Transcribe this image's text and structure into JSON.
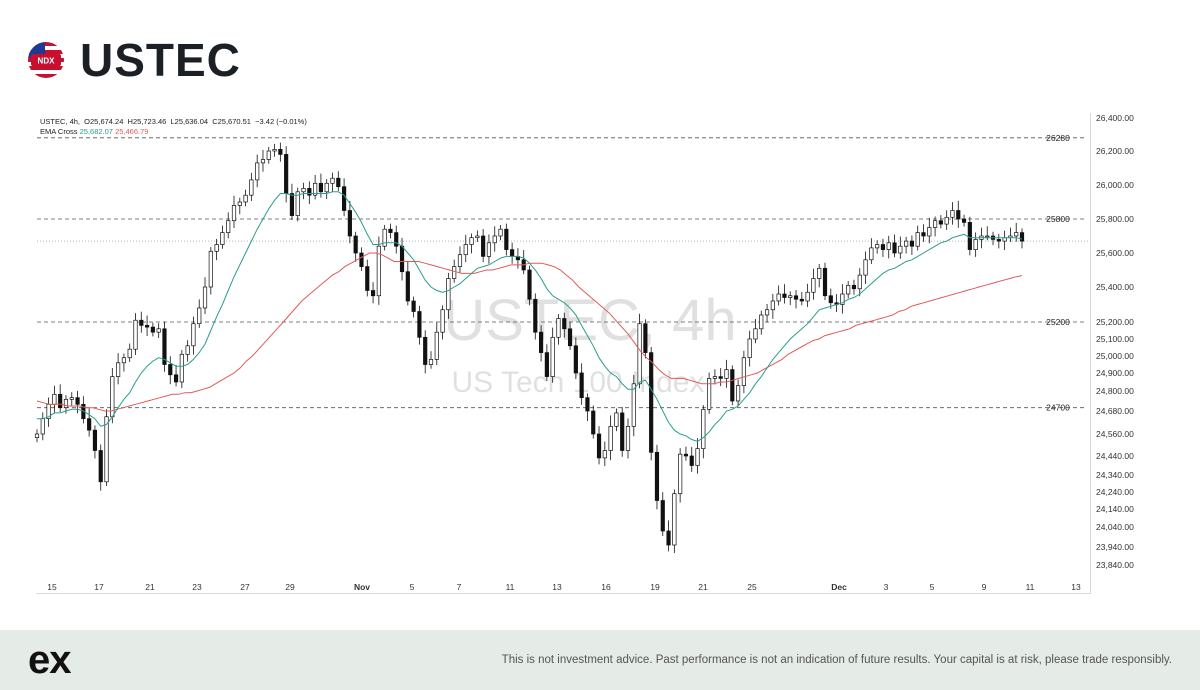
{
  "header": {
    "title": "USTEC",
    "flag_badge": "NDX",
    "flag_icon": "us-flag-icon"
  },
  "legend": {
    "symbol_line": "USTEC, 4h,  O25,674.24  H25,723.46  L25,636.04  C25,670.51  −3.42 (−0.01%)",
    "ema_label": "EMA Cross",
    "ema_fast_value": "25,682.07",
    "ema_slow_value": "25,466.79",
    "ema_fast_color": "#2a9d8f",
    "ema_slow_color": "#e05a5a"
  },
  "watermark": {
    "symbol": "USTEC, 4h",
    "name": "US Tech 100 Index"
  },
  "footer": {
    "brand": "ex",
    "disclaimer": "This is not investment advice. Past performance is not an indication of future results. Your capital is at risk, please trade responsibly."
  },
  "chart_data": {
    "type": "candlestick",
    "y_ticks": [
      "26,400.00",
      "26,200.00",
      "26,000.00",
      "25,800.00",
      "25,600.00",
      "25,400.00",
      "25,200.00",
      "25,100.00",
      "25,000.00",
      "24,900.00",
      "24,800.00",
      "24,680.00",
      "24,560.00",
      "24,440.00",
      "24,340.00",
      "24,240.00",
      "24,140.00",
      "24,040.00",
      "23,940.00",
      "23,840.00"
    ],
    "x_ticks": [
      "15",
      "17",
      "21",
      "23",
      "27",
      "29",
      "Nov",
      "5",
      "7",
      "11",
      "13",
      "16",
      "19",
      "21",
      "25",
      "Dec",
      "3",
      "5",
      "9",
      "11",
      "13"
    ],
    "levels": [
      {
        "label": "26280",
        "value": 26280
      },
      {
        "label": "25800",
        "value": 25800
      },
      {
        "label": "25200",
        "value": 25200
      },
      {
        "label": "24700",
        "value": 24700
      }
    ],
    "last_price": 25670.51,
    "closes": [
      24560,
      24640,
      24720,
      24780,
      24700,
      24750,
      24760,
      24720,
      24640,
      24580,
      24470,
      24300,
      24650,
      24880,
      24960,
      24990,
      25040,
      25210,
      25180,
      25170,
      25140,
      25160,
      24950,
      24890,
      24850,
      25010,
      25060,
      25190,
      25280,
      25400,
      25610,
      25650,
      25720,
      25790,
      25880,
      25900,
      25940,
      26030,
      26130,
      26150,
      26200,
      26210,
      26180,
      25950,
      25820,
      25960,
      25980,
      25940,
      26010,
      25960,
      26010,
      26040,
      25990,
      25850,
      25700,
      25600,
      25520,
      25380,
      25350,
      25640,
      25740,
      25720,
      25640,
      25490,
      25320,
      25260,
      25110,
      24950,
      24980,
      25140,
      25270,
      25450,
      25520,
      25590,
      25650,
      25690,
      25700,
      25580,
      25660,
      25700,
      25740,
      25620,
      25580,
      25560,
      25500,
      25330,
      25140,
      25020,
      24880,
      25110,
      25220,
      25160,
      25060,
      24900,
      24760,
      24680,
      24560,
      24430,
      24470,
      24600,
      24670,
      24470,
      24600,
      24840,
      25190,
      25020,
      24460,
      24190,
      24020,
      23950,
      24230,
      24450,
      24440,
      24390,
      24480,
      24690,
      24870,
      24880,
      24870,
      24920,
      24740,
      24830,
      24990,
      25100,
      25160,
      25240,
      25270,
      25320,
      25360,
      25340,
      25350,
      25330,
      25320,
      25370,
      25450,
      25510,
      25350,
      25310,
      25300,
      25360,
      25410,
      25390,
      25470,
      25560,
      25630,
      25650,
      25620,
      25660,
      25600,
      25640,
      25670,
      25640,
      25720,
      25700,
      25750,
      25790,
      25770,
      25810,
      25850,
      25800,
      25780,
      25620,
      25680,
      25700,
      25700,
      25680,
      25670,
      25690,
      25700,
      25720,
      25670
    ],
    "ema_fast": [
      24640,
      24640,
      24650,
      24670,
      24670,
      24680,
      24690,
      24690,
      24680,
      24660,
      24640,
      24600,
      24610,
      24650,
      24700,
      24750,
      24790,
      24850,
      24900,
      24940,
      24970,
      24990,
      24980,
      24960,
      24940,
      24940,
      24950,
      24980,
      25020,
      25070,
      25150,
      25230,
      25300,
      25380,
      25460,
      25530,
      25600,
      25670,
      25740,
      25800,
      25860,
      25910,
      25950,
      25950,
      25940,
      25940,
      25950,
      25950,
      25950,
      25950,
      25950,
      25960,
      25960,
      25940,
      25890,
      25840,
      25780,
      25710,
      25650,
      25650,
      25660,
      25660,
      25660,
      25640,
      25600,
      25560,
      25500,
      25440,
      25400,
      25380,
      25370,
      25380,
      25400,
      25420,
      25450,
      25480,
      25510,
      25520,
      25530,
      25550,
      25570,
      25580,
      25580,
      25580,
      25570,
      25540,
      25500,
      25450,
      25390,
      25350,
      25330,
      25310,
      25280,
      25240,
      25180,
      25120,
      25060,
      24990,
      24940,
      24900,
      24880,
      24840,
      24810,
      24810,
      24850,
      24860,
      24810,
      24750,
      24680,
      24620,
      24580,
      24560,
      24550,
      24530,
      24520,
      24540,
      24570,
      24610,
      24640,
      24680,
      24690,
      24710,
      24750,
      24790,
      24840,
      24880,
      24930,
      24980,
      25020,
      25060,
      25100,
      25130,
      25160,
      25190,
      25230,
      25270,
      25280,
      25290,
      25300,
      25310,
      25330,
      25340,
      25360,
      25390,
      25420,
      25450,
      25480,
      25500,
      25510,
      25530,
      25550,
      25560,
      25580,
      25600,
      25620,
      25640,
      25660,
      25670,
      25690,
      25700,
      25710,
      25690,
      25690,
      25690,
      25690,
      25690,
      25690,
      25690,
      25690,
      25690,
      25682
    ],
    "ema_slow": [
      24740,
      24730,
      24720,
      24720,
      24720,
      24710,
      24710,
      24710,
      24700,
      24700,
      24690,
      24680,
      24680,
      24690,
      24700,
      24710,
      24720,
      24730,
      24740,
      24750,
      24760,
      24770,
      24780,
      24780,
      24790,
      24790,
      24800,
      24810,
      24820,
      24840,
      24860,
      24880,
      24900,
      24930,
      24970,
      25000,
      25040,
      25080,
      25120,
      25160,
      25200,
      25240,
      25280,
      25320,
      25350,
      25380,
      25410,
      25440,
      25470,
      25490,
      25520,
      25540,
      25560,
      25580,
      25600,
      25600,
      25590,
      25570,
      25550,
      25550,
      25550,
      25550,
      25550,
      25540,
      25530,
      25520,
      25510,
      25500,
      25490,
      25480,
      25480,
      25480,
      25490,
      25500,
      25500,
      25510,
      25520,
      25530,
      25530,
      25530,
      25540,
      25540,
      25540,
      25530,
      25520,
      25500,
      25470,
      25440,
      25400,
      25370,
      25340,
      25310,
      25280,
      25250,
      25210,
      25170,
      25130,
      25080,
      25030,
      24990,
      24960,
      24920,
      24890,
      24870,
      24870,
      24870,
      24860,
      24850,
      24840,
      24840,
      24840,
      24850,
      24850,
      24860,
      24870,
      24880,
      24890,
      24900,
      24920,
      24940,
      24960,
      24980,
      25010,
      25030,
      25050,
      25070,
      25090,
      25100,
      25120,
      25130,
      25140,
      25150,
      25160,
      25180,
      25190,
      25200,
      25210,
      25220,
      25230,
      25240,
      25260,
      25270,
      25290,
      25300,
      25310,
      25320,
      25330,
      25340,
      25350,
      25360,
      25370,
      25380,
      25390,
      25400,
      25410,
      25420,
      25430,
      25440,
      25450,
      25460,
      25467
    ]
  }
}
